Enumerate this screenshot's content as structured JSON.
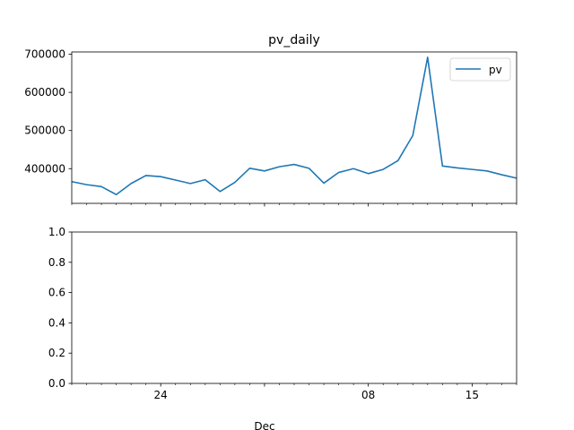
{
  "chart_data": [
    {
      "type": "line",
      "title": "pv_daily",
      "xlabel": "",
      "ylabel": "",
      "x": [
        "2023-11-18",
        "2023-11-19",
        "2023-11-20",
        "2023-11-21",
        "2023-11-22",
        "2023-11-23",
        "2023-11-24",
        "2023-11-25",
        "2023-11-26",
        "2023-11-27",
        "2023-11-28",
        "2023-11-29",
        "2023-11-30",
        "2023-12-01",
        "2023-12-02",
        "2023-12-03",
        "2023-12-04",
        "2023-12-05",
        "2023-12-06",
        "2023-12-07",
        "2023-12-08",
        "2023-12-09",
        "2023-12-10",
        "2023-12-11",
        "2023-12-12",
        "2023-12-13",
        "2023-12-14",
        "2023-12-15",
        "2023-12-16",
        "2023-12-17",
        "2023-12-18"
      ],
      "series": [
        {
          "name": "pv",
          "color": "#1f77b4",
          "values": [
            366000,
            358000,
            353000,
            332000,
            361000,
            382000,
            379000,
            370000,
            361000,
            371000,
            340000,
            364000,
            401000,
            394000,
            405000,
            411000,
            401000,
            362000,
            390000,
            400000,
            387000,
            398000,
            421000,
            487000,
            692000,
            407000,
            402000,
            398000,
            394000,
            384000,
            375000
          ]
        }
      ],
      "ylim": [
        309000,
        706000
      ],
      "yticks": [
        400000,
        500000,
        600000,
        700000
      ],
      "ytick_labels": [
        "400000",
        "500000",
        "600000",
        "700000"
      ],
      "xlim": [
        "2023-11-18",
        "2023-12-18"
      ],
      "legend": "top-right",
      "grid": false
    },
    {
      "type": "line",
      "title": "",
      "ylabel": "",
      "series": [],
      "ylim": [
        0.0,
        1.0
      ],
      "yticks": [
        0.0,
        0.2,
        0.4,
        0.6,
        0.8,
        1.0
      ],
      "ytick_labels": [
        "0.0",
        "0.2",
        "0.4",
        "0.6",
        "0.8",
        "1.0"
      ],
      "xtick_labels": [
        {
          "date": "2023-11-24",
          "label": "24"
        },
        {
          "date": "2023-12-08",
          "label": "08"
        },
        {
          "date": "2023-12-15",
          "label": "15"
        }
      ],
      "xlabel": "Dec",
      "grid": false
    }
  ]
}
